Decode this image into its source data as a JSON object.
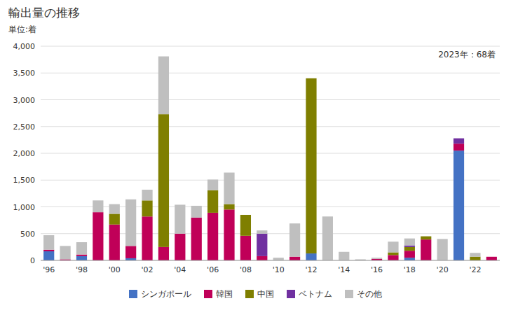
{
  "chart_data": {
    "type": "bar",
    "stacked": true,
    "title": "輸出量の推移",
    "subtitle": "単位:着",
    "annotation": "2023年：68着",
    "categories": [
      "'96",
      null,
      "'98",
      null,
      "'00",
      null,
      "'02",
      null,
      "'04",
      null,
      "'06",
      null,
      "'08",
      null,
      "'10",
      null,
      "'12",
      null,
      "'14",
      null,
      "'16",
      null,
      "'18",
      null,
      "'20",
      null,
      "'22",
      null
    ],
    "series": [
      {
        "name": "シンガポール",
        "color": "#4472c4",
        "values": [
          170,
          0,
          80,
          0,
          0,
          40,
          0,
          0,
          0,
          0,
          0,
          0,
          0,
          0,
          0,
          0,
          130,
          0,
          0,
          0,
          0,
          0,
          50,
          0,
          0,
          2050,
          0,
          0
        ]
      },
      {
        "name": "韓国",
        "color": "#c00058",
        "values": [
          30,
          20,
          30,
          900,
          670,
          230,
          820,
          250,
          500,
          800,
          890,
          950,
          460,
          80,
          0,
          70,
          0,
          0,
          0,
          0,
          30,
          100,
          130,
          390,
          0,
          130,
          0,
          68
        ]
      },
      {
        "name": "中国",
        "color": "#7f7f00",
        "values": [
          0,
          0,
          0,
          0,
          200,
          0,
          300,
          2480,
          0,
          0,
          420,
          100,
          390,
          0,
          0,
          0,
          3270,
          0,
          0,
          0,
          0,
          50,
          70,
          60,
          0,
          0,
          70,
          0
        ]
      },
      {
        "name": "ベトナム",
        "color": "#7030a0",
        "values": [
          0,
          0,
          0,
          0,
          0,
          0,
          0,
          0,
          0,
          0,
          0,
          0,
          0,
          420,
          0,
          0,
          0,
          0,
          0,
          0,
          0,
          0,
          30,
          0,
          0,
          100,
          0,
          0
        ]
      },
      {
        "name": "その他",
        "color": "#bfbfbf",
        "values": [
          270,
          250,
          230,
          220,
          180,
          870,
          200,
          1080,
          540,
          220,
          200,
          590,
          0,
          60,
          50,
          620,
          0,
          820,
          160,
          20,
          20,
          200,
          130,
          0,
          400,
          0,
          70,
          0
        ]
      }
    ],
    "ylim": [
      0,
      4000
    ],
    "yticks": [
      0,
      500,
      {
        "value": 1000,
        "label": "1,000"
      },
      {
        "value": 1500,
        "label": "1,500"
      },
      {
        "value": 2000,
        "label": "2,000"
      },
      {
        "value": 2500,
        "label": "2,500"
      },
      {
        "value": 3000,
        "label": "3,000"
      },
      {
        "value": 3500,
        "label": "3,500"
      },
      {
        "value": 4000,
        "label": "4,000"
      }
    ],
    "grid": true,
    "legend": "bottom"
  }
}
